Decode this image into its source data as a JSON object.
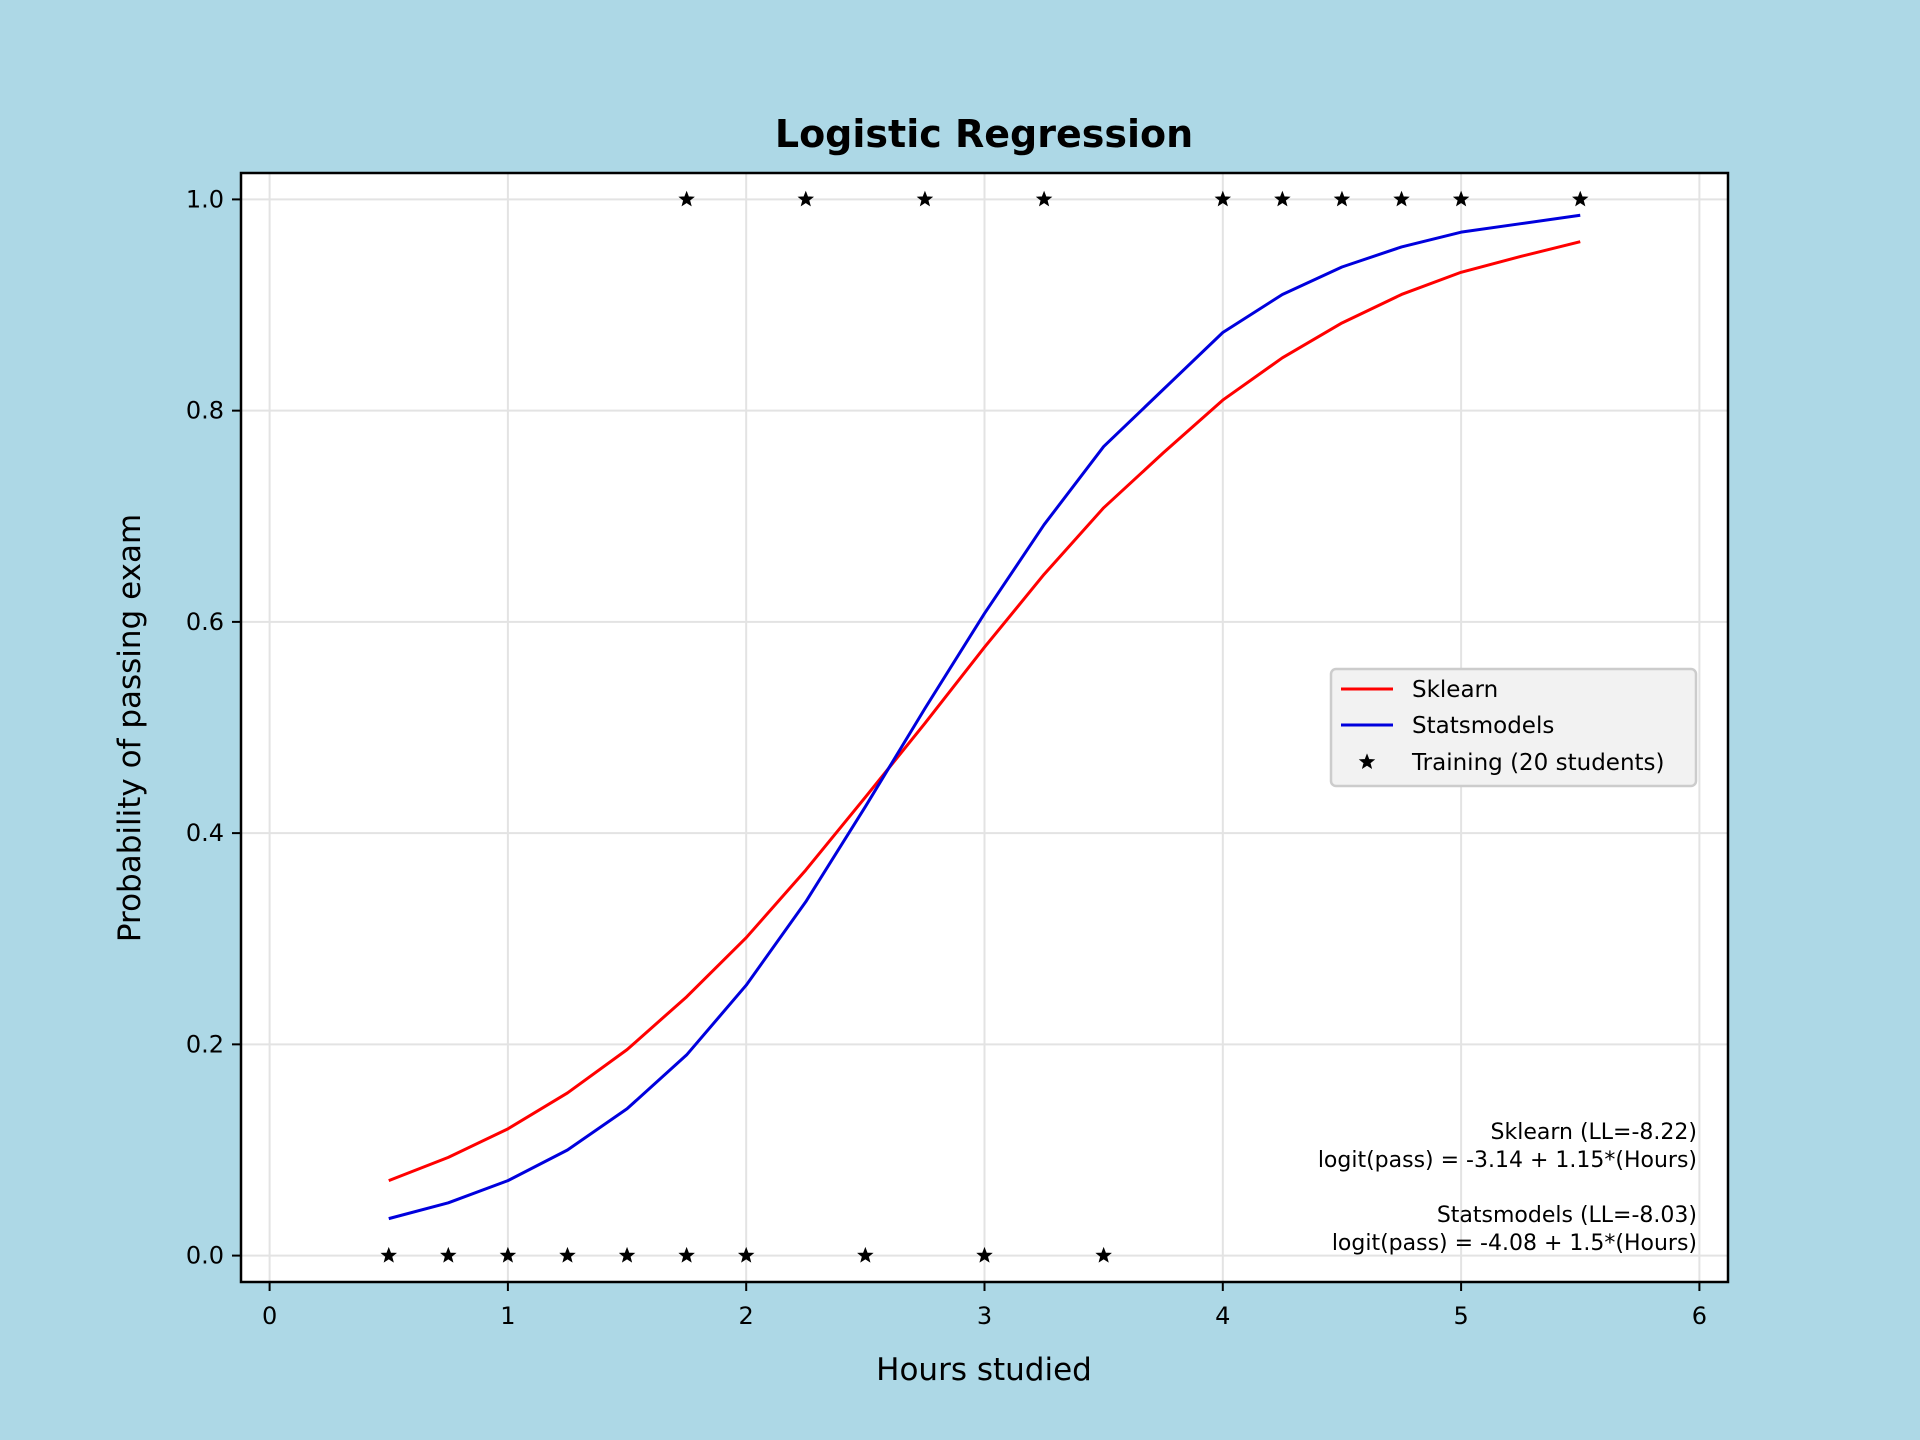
{
  "chart_data": {
    "type": "line",
    "title": "Logistic Regression",
    "xlabel": "Hours studied",
    "ylabel": "Probability of passing exam",
    "xlim": [
      -0.12,
      6.12
    ],
    "ylim": [
      -0.025,
      1.025
    ],
    "xticks": [
      0,
      1,
      2,
      3,
      4,
      5,
      6
    ],
    "yticks": [
      0.0,
      0.2,
      0.4,
      0.6,
      0.8,
      1.0
    ],
    "grid": true,
    "legend_position": "center-right",
    "x": [
      0.5,
      0.75,
      1.0,
      1.25,
      1.5,
      1.75,
      2.0,
      2.25,
      2.5,
      2.75,
      3.0,
      3.25,
      3.5,
      3.75,
      4.0,
      4.25,
      4.5,
      4.75,
      5.0,
      5.25,
      5.5
    ],
    "series": [
      {
        "name": "Sklearn",
        "color": "#ff0000",
        "kind": "line",
        "x": [
          0.5,
          0.75,
          1.0,
          1.25,
          1.5,
          1.75,
          2.0,
          2.25,
          2.5,
          2.75,
          3.0,
          3.25,
          3.5,
          3.75,
          4.0,
          4.25,
          4.5,
          4.75,
          5.0,
          5.25,
          5.5
        ],
        "values": [
          0.071,
          0.093,
          0.12,
          0.154,
          0.195,
          0.245,
          0.301,
          0.365,
          0.434,
          0.504,
          0.576,
          0.645,
          0.708,
          0.76,
          0.81,
          0.85,
          0.883,
          0.91,
          0.931,
          0.946,
          0.96
        ]
      },
      {
        "name": "Statsmodels",
        "color": "#0000dd",
        "kind": "line",
        "x": [
          0.5,
          0.75,
          1.0,
          1.25,
          1.5,
          1.75,
          2.0,
          2.25,
          2.5,
          2.75,
          3.0,
          3.25,
          3.5,
          3.75,
          4.0,
          4.25,
          4.5,
          4.75,
          5.0,
          5.25,
          5.5
        ],
        "values": [
          0.035,
          0.05,
          0.071,
          0.1,
          0.139,
          0.19,
          0.256,
          0.335,
          0.425,
          0.518,
          0.608,
          0.692,
          0.766,
          0.82,
          0.874,
          0.91,
          0.936,
          0.955,
          0.969,
          0.977,
          0.985
        ]
      },
      {
        "name": "Training (20 students)",
        "color": "#000000",
        "kind": "scatter",
        "marker": "star",
        "x": [
          0.5,
          0.75,
          1.0,
          1.25,
          1.5,
          1.75,
          1.75,
          2.0,
          2.25,
          2.5,
          2.75,
          3.0,
          3.25,
          3.5,
          4.0,
          4.25,
          4.5,
          4.75,
          5.0,
          5.5
        ],
        "values": [
          0,
          0,
          0,
          0,
          0,
          0,
          1,
          0,
          1,
          0,
          1,
          0,
          1,
          0,
          1,
          1,
          1,
          1,
          1,
          1
        ]
      }
    ],
    "annotations": [
      "Sklearn (LL=-8.22)",
      "logit(pass) = -3.14 + 1.15*(Hours)",
      "Statsmodels (LL=-8.03)",
      "logit(pass) = -4.08 + 1.5*(Hours)"
    ]
  }
}
